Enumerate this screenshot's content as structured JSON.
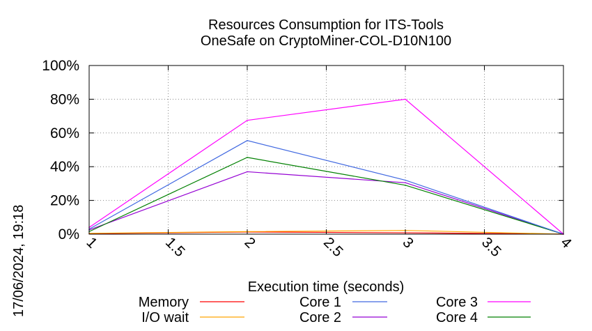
{
  "chart_data": {
    "type": "line",
    "title": [
      "Resources Consumption for ITS-Tools",
      "OneSafe on CryptoMiner-COL-D10N100"
    ],
    "xlabel": "Execution time (seconds)",
    "ylabel": "",
    "xlim": [
      1,
      4
    ],
    "ylim": [
      0,
      100
    ],
    "x_ticks": [
      {
        "value": 1,
        "label": "1"
      },
      {
        "value": 1.5,
        "label": "1.5"
      },
      {
        "value": 2,
        "label": "2"
      },
      {
        "value": 2.5,
        "label": "2.5"
      },
      {
        "value": 3,
        "label": "3"
      },
      {
        "value": 3.5,
        "label": "3.5"
      },
      {
        "value": 4,
        "label": "4"
      }
    ],
    "y_ticks": [
      {
        "value": 0,
        "label": "0%"
      },
      {
        "value": 20,
        "label": "20%"
      },
      {
        "value": 40,
        "label": "40%"
      },
      {
        "value": 60,
        "label": "60%"
      },
      {
        "value": 80,
        "label": "80%"
      },
      {
        "value": 100,
        "label": "100%"
      }
    ],
    "grid": true,
    "legend_position": "bottom",
    "x": [
      1,
      2,
      3,
      4
    ],
    "series": [
      {
        "name": "Memory",
        "color": "#ff0000",
        "values": [
          0.3,
          1.3,
          0.8,
          0.0
        ]
      },
      {
        "name": "I/O wait",
        "color": "#ffa500",
        "values": [
          0.5,
          1.5,
          2.2,
          0.0
        ]
      },
      {
        "name": "Core 1",
        "color": "#4169e1",
        "values": [
          3,
          55.5,
          32,
          0
        ]
      },
      {
        "name": "Core 2",
        "color": "#9400d3",
        "values": [
          2.5,
          37,
          30.5,
          0
        ]
      },
      {
        "name": "Core 3",
        "color": "#ff00ff",
        "values": [
          4,
          67.5,
          80,
          0
        ]
      },
      {
        "name": "Core 4",
        "color": "#008000",
        "values": [
          1.5,
          45.5,
          29,
          0
        ]
      }
    ],
    "timestamp": "17/06/2024, 19:18"
  }
}
